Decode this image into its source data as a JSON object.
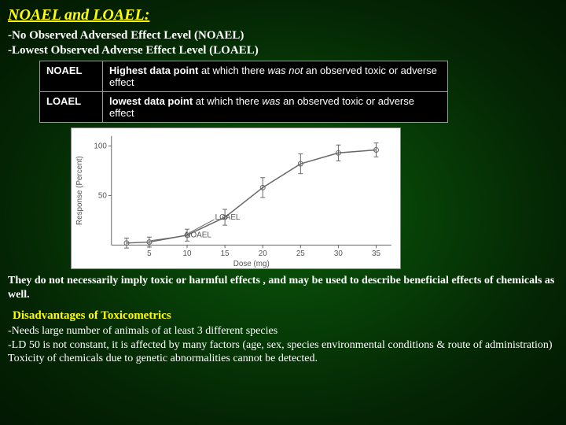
{
  "title": "NOAEL and LOAEL:",
  "sub1": "-No Observed Adversed Effect Level (NOAEL)",
  "sub2": "-Lowest Observed Adverse Effect Level (LOAEL)",
  "definitions": {
    "rows": [
      {
        "label": "NOAEL",
        "textA": "Highest data point",
        "textB": " at which there ",
        "textC": "was not",
        "textD": " an observed toxic or adverse effect"
      },
      {
        "label": "LOAEL",
        "textA": "lowest data point",
        "textB": " at which there ",
        "textC": "was",
        "textD": " an observed toxic or adverse effect"
      }
    ]
  },
  "chart": {
    "type": "scatter-line",
    "background_color": "#ffffff",
    "axis_color": "#666666",
    "line_color": "#666666",
    "text_color": "#555555",
    "fontsize": 10,
    "xlabel": "Dose (mg)",
    "ylabel": "Response (Percent)",
    "xlim": [
      0,
      37
    ],
    "ylim": [
      0,
      110
    ],
    "xticks": [
      5,
      10,
      15,
      20,
      25,
      30,
      35
    ],
    "yticks": [
      50,
      100
    ],
    "points": [
      {
        "x": 2,
        "y": 2,
        "err": 5
      },
      {
        "x": 5,
        "y": 3,
        "err": 5
      },
      {
        "x": 10,
        "y": 10,
        "err": 6
      },
      {
        "x": 15,
        "y": 28,
        "err": 8
      },
      {
        "x": 20,
        "y": 58,
        "err": 10
      },
      {
        "x": 25,
        "y": 82,
        "err": 10
      },
      {
        "x": 30,
        "y": 93,
        "err": 8
      },
      {
        "x": 35,
        "y": 96,
        "err": 7
      }
    ],
    "noael_label": "NOAEL",
    "loael_label": "LOAEL",
    "noael_point": 1,
    "loael_point": 2
  },
  "note": "They do not necessarily imply toxic or harmful effects , and may be used to describe beneficial effects of chemicals as well.",
  "disadvantages": {
    "title": "Disadvantages of Toxicometrics",
    "items": [
      "-Needs large number of animals of at least 3 different species",
      "-LD 50 is not constant, it is affected by many factors (age, sex, species environmental conditions & route of administration)",
      "Toxicity of chemicals due to genetic abnormalities cannot be detected."
    ]
  }
}
